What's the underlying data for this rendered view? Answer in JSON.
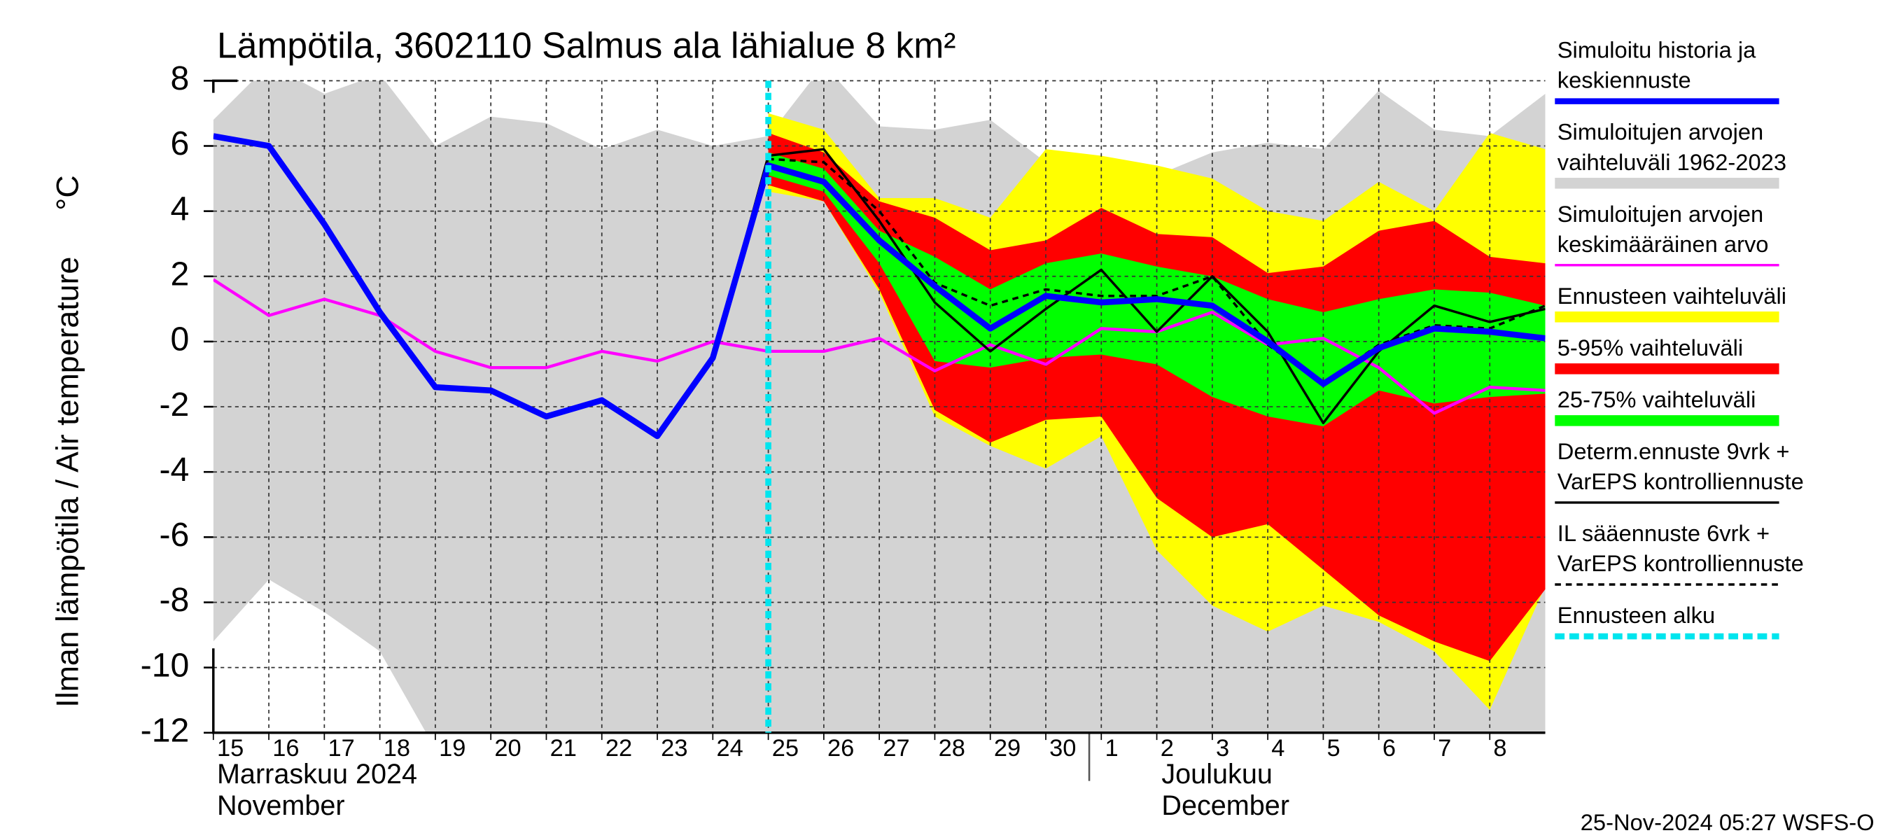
{
  "chart_data": {
    "type": "line",
    "title": "Lämpötila, 3602110 Salmus ala lähialue 8 km²",
    "y_label": "Ilman lämpötila / Air temperature",
    "y_unit": "°C",
    "categories": [
      "15",
      "16",
      "17",
      "18",
      "19",
      "20",
      "21",
      "22",
      "23",
      "24",
      "25",
      "26",
      "27",
      "28",
      "29",
      "30",
      "1",
      "2",
      "3",
      "4",
      "5",
      "6",
      "7",
      "8",
      null
    ],
    "month_labels": [
      {
        "category": "15",
        "lines": [
          "Marraskuu 2024",
          "November"
        ]
      },
      {
        "category": "1",
        "lines": [
          "Joulukuu",
          "December"
        ]
      }
    ],
    "forecast_start": "25",
    "ylim": [
      -12,
      8
    ],
    "yticks": [
      -12,
      -10,
      -8,
      -6,
      -4,
      -2,
      0,
      2,
      4,
      6,
      8
    ],
    "grid": true,
    "timestamp": "25-Nov-2024 05:27 WSFS-O",
    "series": [
      {
        "name": [
          "Simuloitu historia ja",
          "keskiennuste"
        ],
        "kind": "line",
        "color": "#0000ff",
        "width": 5,
        "values": [
          6.3,
          6.0,
          3.6,
          0.9,
          -1.4,
          -1.5,
          -2.3,
          -1.8,
          -2.9,
          -0.5,
          5.4,
          4.9,
          3.1,
          1.7,
          0.4,
          1.4,
          1.2,
          1.3,
          1.1,
          0.0,
          -1.3,
          -0.2,
          0.4,
          0.3,
          0.1
        ]
      },
      {
        "name": [
          "Simuloitujen arvojen",
          "vaihteluväli 1962-2023"
        ],
        "kind": "band",
        "color": "#d3d3d3",
        "upper": [
          6.8,
          8.5,
          7.6,
          8.2,
          6.0,
          6.9,
          6.7,
          5.9,
          6.5,
          6.0,
          6.3,
          8.5,
          6.6,
          6.5,
          6.8,
          5.5,
          5.4,
          5.1,
          5.8,
          6.1,
          5.9,
          7.7,
          6.5,
          6.3,
          7.6
        ],
        "lower": [
          -9.2,
          -7.3,
          -8.3,
          -9.5,
          -12.5,
          -13,
          -13,
          -13,
          -13,
          -13,
          -13,
          -13,
          -13,
          -13,
          -13,
          -13,
          -13,
          -13,
          -13,
          -13,
          -13,
          -13,
          -13,
          -13,
          -13
        ]
      },
      {
        "name": [
          "Simuloitujen arvojen",
          "keskimääräinen arvo"
        ],
        "kind": "line",
        "color": "#ff00ff",
        "width": 2.5,
        "values": [
          1.9,
          0.8,
          1.3,
          0.8,
          -0.3,
          -0.8,
          -0.8,
          -0.3,
          -0.6,
          0.0,
          -0.3,
          -0.3,
          0.1,
          -0.9,
          -0.1,
          -0.7,
          0.4,
          0.3,
          0.9,
          -0.1,
          0.1,
          -0.8,
          -2.2,
          -1.4,
          -1.5
        ]
      },
      {
        "name": [
          "Ennusteen vaihteluväli"
        ],
        "kind": "band",
        "color": "#ffff00",
        "upper": [
          null,
          null,
          null,
          null,
          null,
          null,
          null,
          null,
          null,
          null,
          7.0,
          6.5,
          4.4,
          4.4,
          3.8,
          5.9,
          5.7,
          5.4,
          5.0,
          4.0,
          3.7,
          4.9,
          4.0,
          6.4,
          5.9
        ],
        "lower": [
          null,
          null,
          null,
          null,
          null,
          null,
          null,
          null,
          null,
          null,
          4.6,
          4.3,
          1.5,
          -2.3,
          -3.2,
          -3.9,
          -2.9,
          -6.4,
          -8.1,
          -8.9,
          -8.1,
          -8.6,
          -9.5,
          -11.3,
          -7.5
        ]
      },
      {
        "name": [
          "5-95% vaihteluväli"
        ],
        "kind": "band",
        "color": "#ff0000",
        "upper": [
          null,
          null,
          null,
          null,
          null,
          null,
          null,
          null,
          null,
          null,
          6.4,
          5.8,
          4.3,
          3.8,
          2.8,
          3.1,
          4.1,
          3.3,
          3.2,
          2.1,
          2.3,
          3.4,
          3.7,
          2.6,
          2.4
        ],
        "lower": [
          null,
          null,
          null,
          null,
          null,
          null,
          null,
          null,
          null,
          null,
          4.8,
          4.3,
          1.6,
          -2.1,
          -3.1,
          -2.4,
          -2.3,
          -4.8,
          -6.0,
          -5.6,
          -7.0,
          -8.4,
          -9.2,
          -9.8,
          -7.6
        ]
      },
      {
        "name": [
          "25-75% vaihteluväli"
        ],
        "kind": "band",
        "color": "#00ff00",
        "upper": [
          null,
          null,
          null,
          null,
          null,
          null,
          null,
          null,
          null,
          null,
          5.8,
          5.3,
          3.4,
          2.6,
          1.6,
          2.4,
          2.7,
          2.3,
          2.0,
          1.3,
          0.9,
          1.3,
          1.6,
          1.5,
          1.1
        ],
        "lower": [
          null,
          null,
          null,
          null,
          null,
          null,
          null,
          null,
          null,
          null,
          5.1,
          4.6,
          2.4,
          -0.6,
          -0.8,
          -0.5,
          -0.4,
          -0.7,
          -1.7,
          -2.3,
          -2.6,
          -1.5,
          -1.9,
          -1.7,
          -1.6
        ]
      },
      {
        "name": [
          "Determ.ennuste 9vrk +",
          "VarEPS kontrolliennuste"
        ],
        "kind": "line",
        "color": "#000000",
        "width": 2,
        "values": [
          null,
          null,
          null,
          null,
          null,
          null,
          null,
          null,
          null,
          -0.5,
          5.7,
          5.9,
          3.7,
          1.2,
          -0.3,
          1.0,
          2.2,
          0.3,
          2.0,
          0.3,
          -2.5,
          -0.3,
          1.1,
          0.6,
          1.0
        ]
      },
      {
        "name": [
          "IL sääennuste 6vrk  +",
          "  VarEPS kontrolliennuste"
        ],
        "kind": "line",
        "color": "#000000",
        "width": 2,
        "dash": true,
        "values": [
          null,
          null,
          null,
          null,
          null,
          null,
          null,
          null,
          null,
          -0.5,
          5.6,
          5.5,
          4.0,
          1.8,
          1.1,
          1.6,
          1.4,
          1.4,
          2.0,
          -0.1,
          -1.3,
          -0.1,
          0.5,
          0.4,
          1.1
        ]
      },
      {
        "name": [
          "Ennusteen alku"
        ],
        "kind": "vline",
        "color": "#00e5ee",
        "width": 5,
        "dash": true
      }
    ]
  }
}
